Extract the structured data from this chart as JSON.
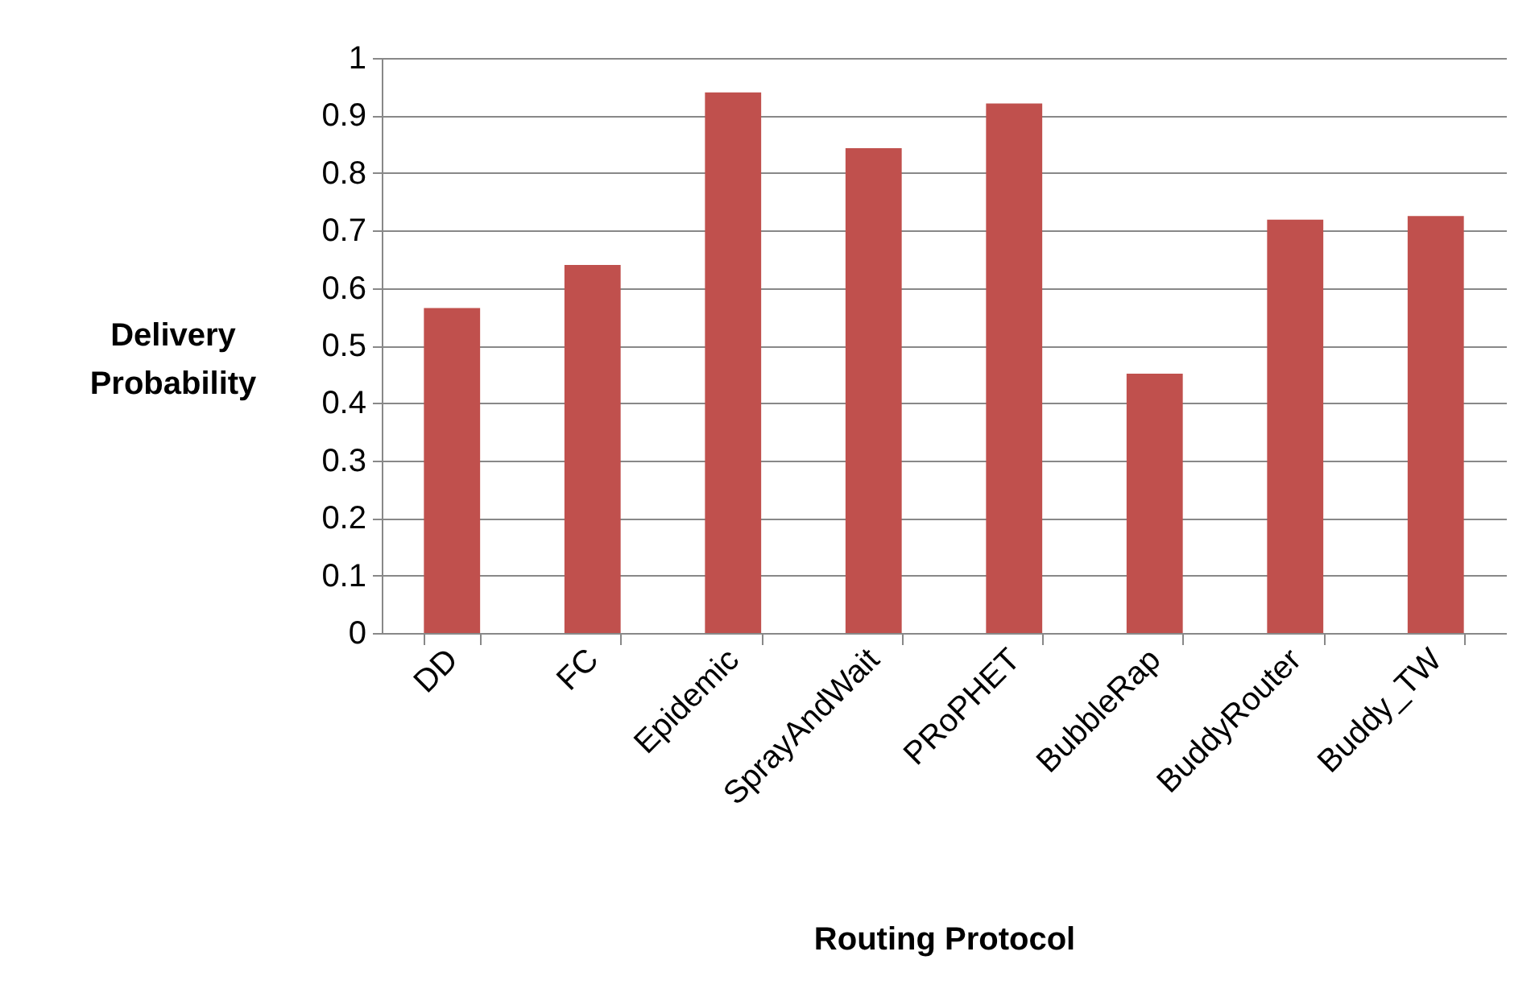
{
  "chart_data": {
    "type": "bar",
    "xlabel": "Routing Protocol",
    "ylabel": "Delivery Probability",
    "categories": [
      "DD",
      "FC",
      "Epidemic",
      "SprayAndWait",
      "PRoPHET",
      "BubbleRap",
      "BuddyRouter",
      "Buddy_TW"
    ],
    "values": [
      0.565,
      0.64,
      0.94,
      0.843,
      0.921,
      0.451,
      0.719,
      0.725
    ],
    "color": "#c0504d",
    "ylim": [
      0,
      1
    ],
    "yticks": [
      0,
      0.1,
      0.2,
      0.3,
      0.4,
      0.5,
      0.6,
      0.7,
      0.8,
      0.9,
      1
    ],
    "grid": "y"
  }
}
